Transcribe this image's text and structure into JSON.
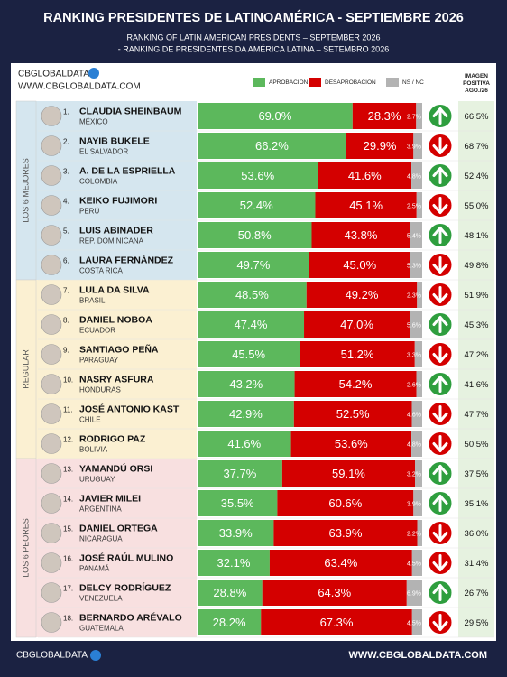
{
  "chart_data": {
    "type": "stacked-bar",
    "title": "RANKING PRESIDENTES DE LATINOAMÉRICA - SEPTIEMBRE 2026",
    "subtitle": [
      "RANKING OF LATIN AMERICAN PRESIDENTS – SEPTEMBER 2026",
      "- RANKING DE PRESIDENTES DA AMÉRICA LATINA – SETEMBRO 2026"
    ],
    "brand": "CBGLOBALDATA",
    "website": "WWW.CBGLOBALDATA.COM",
    "ranks": [
      "1.",
      "2.",
      "3.",
      "4.",
      "5.",
      "6.",
      "7.",
      "8.",
      "9.",
      "10.",
      "11.",
      "12.",
      "13.",
      "14.",
      "15.",
      "16.",
      "17.",
      "18."
    ],
    "categories": [
      "CLAUDIA SHEINBAUM",
      "NAYIB BUKELE",
      "A. DE LA ESPRIELLA",
      "KEIKO FUJIMORI",
      "LUIS ABINADER",
      "LAURA FERNÁNDEZ",
      "LULA DA SILVA",
      "DANIEL NOBOA",
      "SANTIAGO PEÑA",
      "NASRY ASFURA",
      "JOSÉ ANTONIO KAST",
      "RODRIGO PAZ",
      "YAMANDÚ ORSI",
      "JAVIER MILEI",
      "DANIEL ORTEGA",
      "JOSÉ RAÚL MULINO",
      "DELCY RODRÍGUEZ",
      "BERNARDO ARÉVALO"
    ],
    "countries": [
      "MÉXICO",
      "EL SALVADOR",
      "COLOMBIA",
      "PERÚ",
      "REP. DOMINICANA",
      "COSTA RICA",
      "BRASIL",
      "ECUADOR",
      "PARAGUAY",
      "HONDURAS",
      "CHILE",
      "BOLIVIA",
      "URUGUAY",
      "ARGENTINA",
      "NICARAGUA",
      "PANAMÁ",
      "VENEZUELA",
      "GUATEMALA"
    ],
    "groups": [
      "LOS 6 MEJORES",
      "REGULAR",
      "LOS 6 PEORES"
    ],
    "group_colors": [
      "#d5e6ef",
      "#fbf0d2",
      "#f8e0e0"
    ],
    "xlim": [
      0,
      100
    ],
    "series": [
      {
        "name": "APROBACIÓN",
        "color": "#5cb85c",
        "values": [
          69.0,
          66.2,
          53.6,
          52.4,
          50.8,
          49.7,
          48.5,
          47.4,
          45.5,
          43.2,
          42.9,
          41.6,
          37.7,
          35.5,
          33.9,
          32.1,
          28.8,
          28.2
        ],
        "value_labels": [
          "69.0%",
          "66.2%",
          "53.6%",
          "52.4%",
          "50.8%",
          "49.7%",
          "48.5%",
          "47.4%",
          "45.5%",
          "43.2%",
          "42.9%",
          "41.6%",
          "37.7%",
          "35.5%",
          "33.9%",
          "32.1%",
          "28.8%",
          "28.2%"
        ]
      },
      {
        "name": "DESAPROBACIÓN",
        "color": "#d40000",
        "values": [
          28.3,
          29.9,
          41.6,
          45.1,
          43.8,
          45.0,
          49.2,
          47.0,
          51.2,
          54.2,
          52.5,
          53.6,
          59.1,
          60.6,
          63.9,
          63.4,
          64.3,
          67.3
        ],
        "value_labels": [
          "28.3%",
          "29.9%",
          "41.6%",
          "45.1%",
          "43.8%",
          "45.0%",
          "49.2%",
          "47.0%",
          "51.2%",
          "54.2%",
          "52.5%",
          "53.6%",
          "59.1%",
          "60.6%",
          "63.9%",
          "63.4%",
          "64.3%",
          "67.3%"
        ]
      },
      {
        "name": "NS / NC",
        "color": "#b3b3b3",
        "values": [
          2.7,
          3.9,
          4.8,
          2.5,
          5.4,
          5.3,
          2.3,
          5.6,
          3.3,
          2.6,
          4.6,
          4.8,
          3.2,
          3.9,
          2.2,
          4.5,
          6.9,
          4.5
        ],
        "value_labels": [
          "2.7%",
          "3.9%",
          "4.8%",
          "2.5%",
          "5.4%",
          "5.3%",
          "2.3%",
          "5.6%",
          "3.3%",
          "2.6%",
          "4.6%",
          "4.8%",
          "3.2%",
          "3.9%",
          "2.2%",
          "4.5%",
          "6.9%",
          "4.5%"
        ]
      }
    ],
    "trend": [
      "up",
      "down",
      "up",
      "down",
      "up",
      "down",
      "down",
      "up",
      "down",
      "up",
      "down",
      "down",
      "up",
      "up",
      "down",
      "down",
      "up",
      "down"
    ],
    "trend_colors": {
      "up": "#2e9e3e",
      "down": "#d40000"
    },
    "image_title": "IMAGEN POSITIVA AGO./26",
    "image_values": [
      66.5,
      68.7,
      52.4,
      55.0,
      48.1,
      49.8,
      51.9,
      45.3,
      47.2,
      41.6,
      47.7,
      50.5,
      37.5,
      35.1,
      36.0,
      31.4,
      26.7,
      29.5
    ],
    "image_labels": [
      "66.5%",
      "68.7%",
      "52.4%",
      "55.0%",
      "48.1%",
      "49.8%",
      "51.9%",
      "45.3%",
      "47.2%",
      "41.6%",
      "47.7%",
      "50.5%",
      "37.5%",
      "35.1%",
      "36.0%",
      "31.4%",
      "26.7%",
      "29.5%"
    ]
  }
}
